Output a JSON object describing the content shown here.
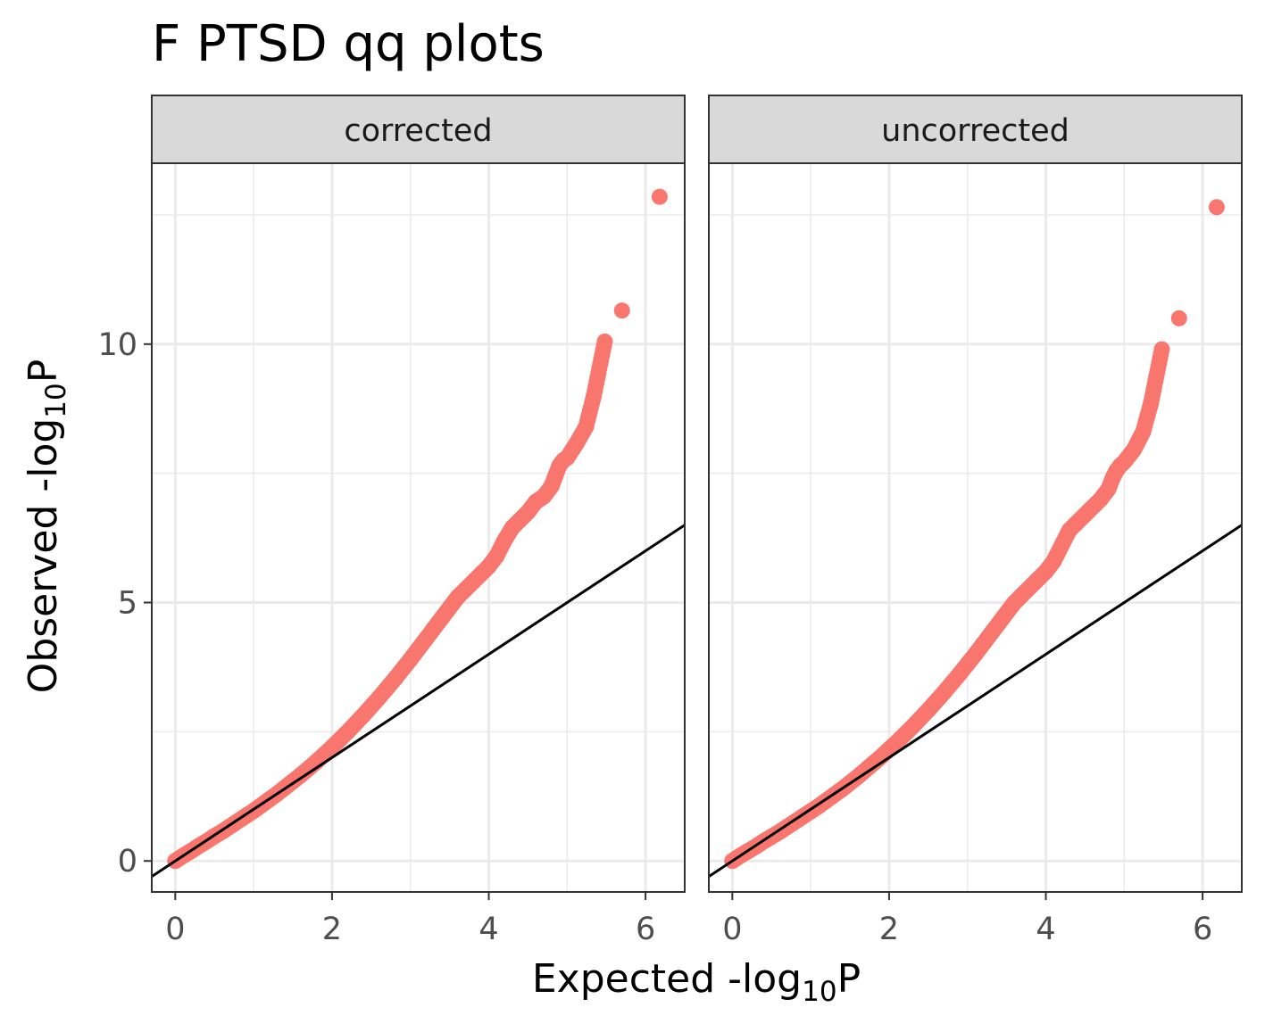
{
  "chart_data": {
    "type": "scatter",
    "title": "F PTSD qq plots",
    "xlabel": {
      "main": "Expected -log",
      "sub": "10",
      "suffix": "P"
    },
    "ylabel": {
      "main": "Observed -log",
      "sub": "10",
      "suffix": "P"
    },
    "xlim": [
      -0.3,
      6.5
    ],
    "ylim": [
      -0.6,
      13.5
    ],
    "x_ticks": [
      0,
      2,
      4,
      6
    ],
    "y_ticks": [
      0,
      5,
      10
    ],
    "grid": true,
    "reference_line": "y = x",
    "point_color": "#F8766D",
    "line_color": "#000000",
    "panels": [
      {
        "label": "corrected",
        "series": [
          {
            "x": [
              0.0,
              0.1,
              0.2,
              0.3,
              0.4,
              0.5,
              0.6,
              0.7,
              0.8,
              0.9,
              1.0,
              1.1,
              1.2,
              1.3,
              1.4,
              1.5,
              1.6,
              1.7,
              1.8,
              1.9,
              2.0,
              2.1,
              2.2,
              2.3,
              2.4,
              2.5,
              2.6,
              2.7,
              2.8,
              2.9,
              3.0,
              3.1,
              3.2,
              3.3,
              3.4,
              3.5,
              3.6,
              3.7,
              3.8,
              3.9,
              4.0,
              4.1,
              4.15,
              4.2,
              4.3,
              4.4,
              4.5,
              4.6,
              4.7,
              4.8,
              4.85,
              4.9,
              4.95,
              5.0,
              5.12,
              5.24,
              5.34,
              5.48,
              5.7,
              6.18
            ],
            "y": [
              0.0,
              0.1,
              0.19,
              0.29,
              0.38,
              0.48,
              0.57,
              0.67,
              0.77,
              0.87,
              0.97,
              1.08,
              1.19,
              1.3,
              1.42,
              1.54,
              1.66,
              1.79,
              1.92,
              2.06,
              2.2,
              2.35,
              2.5,
              2.66,
              2.82,
              2.99,
              3.16,
              3.34,
              3.52,
              3.71,
              3.9,
              4.1,
              4.3,
              4.5,
              4.7,
              4.9,
              5.1,
              5.25,
              5.4,
              5.55,
              5.7,
              5.9,
              6.05,
              6.2,
              6.45,
              6.6,
              6.75,
              6.95,
              7.05,
              7.25,
              7.45,
              7.65,
              7.75,
              7.8,
              8.08,
              8.4,
              9.0,
              10.05,
              10.65,
              12.85
            ]
          }
        ]
      },
      {
        "label": "uncorrected",
        "series": [
          {
            "x": [
              0.0,
              0.1,
              0.2,
              0.3,
              0.4,
              0.5,
              0.6,
              0.7,
              0.8,
              0.9,
              1.0,
              1.1,
              1.2,
              1.3,
              1.4,
              1.5,
              1.6,
              1.7,
              1.8,
              1.9,
              2.0,
              2.1,
              2.2,
              2.3,
              2.4,
              2.5,
              2.6,
              2.7,
              2.8,
              2.9,
              3.0,
              3.1,
              3.2,
              3.3,
              3.4,
              3.5,
              3.6,
              3.7,
              3.8,
              3.9,
              4.0,
              4.1,
              4.15,
              4.2,
              4.3,
              4.4,
              4.5,
              4.6,
              4.7,
              4.8,
              4.85,
              4.9,
              4.95,
              5.0,
              5.12,
              5.24,
              5.34,
              5.48,
              5.7,
              6.18
            ],
            "y": [
              0.0,
              0.1,
              0.19,
              0.28,
              0.38,
              0.47,
              0.56,
              0.66,
              0.76,
              0.86,
              0.96,
              1.06,
              1.17,
              1.28,
              1.39,
              1.51,
              1.63,
              1.76,
              1.89,
              2.02,
              2.16,
              2.3,
              2.45,
              2.6,
              2.76,
              2.92,
              3.09,
              3.26,
              3.44,
              3.62,
              3.81,
              4.0,
              4.2,
              4.4,
              4.6,
              4.8,
              5.0,
              5.15,
              5.3,
              5.45,
              5.6,
              5.8,
              5.95,
              6.1,
              6.4,
              6.55,
              6.7,
              6.85,
              7.0,
              7.2,
              7.4,
              7.55,
              7.65,
              7.72,
              7.95,
              8.3,
              8.85,
              9.9,
              10.5,
              12.65
            ]
          }
        ]
      }
    ]
  }
}
